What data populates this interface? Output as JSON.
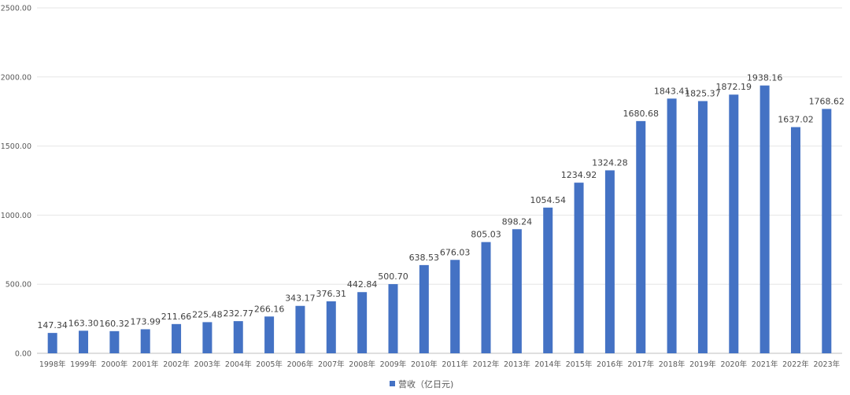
{
  "chart_data": {
    "type": "bar",
    "title": "",
    "xlabel": "",
    "ylabel": "",
    "ylim": [
      0,
      2500
    ],
    "yticks": [
      "0.00",
      "500.00",
      "1000.00",
      "1500.00",
      "2000.00",
      "2500.00"
    ],
    "grid": true,
    "legend_position": "bottom",
    "categories": [
      "1998年",
      "1999年",
      "2000年",
      "2001年",
      "2002年",
      "2003年",
      "2004年",
      "2005年",
      "2006年",
      "2007年",
      "2008年",
      "2009年",
      "2010年",
      "2011年",
      "2012年",
      "2013年",
      "2014年",
      "2015年",
      "2016年",
      "2017年",
      "2018年",
      "2019年",
      "2020年",
      "2021年",
      "2022年",
      "2023年"
    ],
    "series": [
      {
        "name": "营收（亿日元)",
        "color": "#4472c4",
        "values": [
          147.34,
          163.3,
          160.32,
          173.99,
          211.66,
          225.48,
          232.77,
          266.16,
          343.17,
          376.31,
          442.84,
          500.7,
          638.53,
          676.03,
          805.03,
          898.24,
          1054.54,
          1234.92,
          1324.28,
          1680.68,
          1843.41,
          1825.37,
          1872.19,
          1938.16,
          1637.02,
          1768.62
        ],
        "labels": [
          "147.34",
          "163.30",
          "160.32",
          "173.99",
          "211.66",
          "225.48",
          "232.77",
          "266.16",
          "343.17",
          "376.31",
          "442.84",
          "500.70",
          "638.53",
          "676.03",
          "805.03",
          "898.24",
          "1054.54",
          "1234.92",
          "1324.28",
          "1680.68",
          "1843.41",
          "1825.37",
          "1872.19",
          "1938.16",
          "1637.02",
          "1768.62"
        ]
      }
    ]
  }
}
